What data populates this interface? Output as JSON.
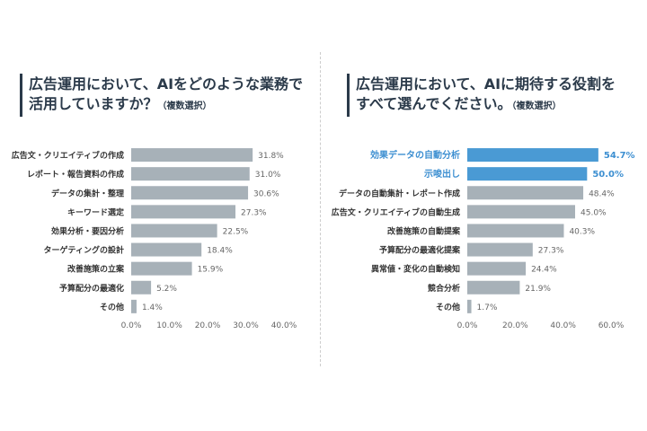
{
  "chart_data": [
    {
      "type": "bar",
      "orientation": "horizontal",
      "title_line1": "広告運用において、AIをどのような業務で",
      "title_line2": "活用していますか？",
      "title_note": "（複数選択）",
      "categories": [
        "広告文・クリエイティブの作成",
        "レポート・報告資料の作成",
        "データの集計・整理",
        "キーワード選定",
        "効果分析・要因分析",
        "ターゲティングの設計",
        "改善施策の立案",
        "予算配分の最適化",
        "その他"
      ],
      "values": [
        31.8,
        31.0,
        30.6,
        27.3,
        22.5,
        18.4,
        15.9,
        5.2,
        1.4
      ],
      "value_labels": [
        "31.8%",
        "31.0%",
        "30.6%",
        "27.3%",
        "22.5%",
        "18.4%",
        "15.9%",
        "5.2%",
        "1.4%"
      ],
      "highlight": [],
      "xlim": [
        0,
        40
      ],
      "ticks": [
        0,
        10,
        20,
        30,
        40
      ],
      "tick_labels": [
        "0.0%",
        "10.0%",
        "20.0%",
        "30.0%",
        "40.0%"
      ],
      "grid": false,
      "colors": {
        "bar": "#a7b1b8",
        "highlight": "#4a9ad4"
      }
    },
    {
      "type": "bar",
      "orientation": "horizontal",
      "title_line1": "広告運用において、AIに期待する役割を",
      "title_line2": "すべて選んでください。",
      "title_note": "（複数選択）",
      "categories": [
        "効果データの自動分析",
        "示唆出し",
        "データの自動集計・レポート作成",
        "広告文・クリエイティブの自動生成",
        "改善施策の自動提案",
        "予算配分の最適化提案",
        "異常値・変化の自動検知",
        "競合分析",
        "その他"
      ],
      "values": [
        54.7,
        50.0,
        48.4,
        45.0,
        40.3,
        27.3,
        24.4,
        21.9,
        1.7
      ],
      "value_labels": [
        "54.7%",
        "50.0%",
        "48.4%",
        "45.0%",
        "40.3%",
        "27.3%",
        "24.4%",
        "21.9%",
        "1.7%"
      ],
      "highlight": [
        0,
        1
      ],
      "xlim": [
        0,
        60
      ],
      "ticks": [
        0,
        20,
        40,
        60
      ],
      "tick_labels": [
        "0.0%",
        "20.0%",
        "40.0%",
        "60.0%"
      ],
      "grid": false,
      "colors": {
        "bar": "#a7b1b8",
        "highlight": "#4a9ad4"
      }
    }
  ]
}
